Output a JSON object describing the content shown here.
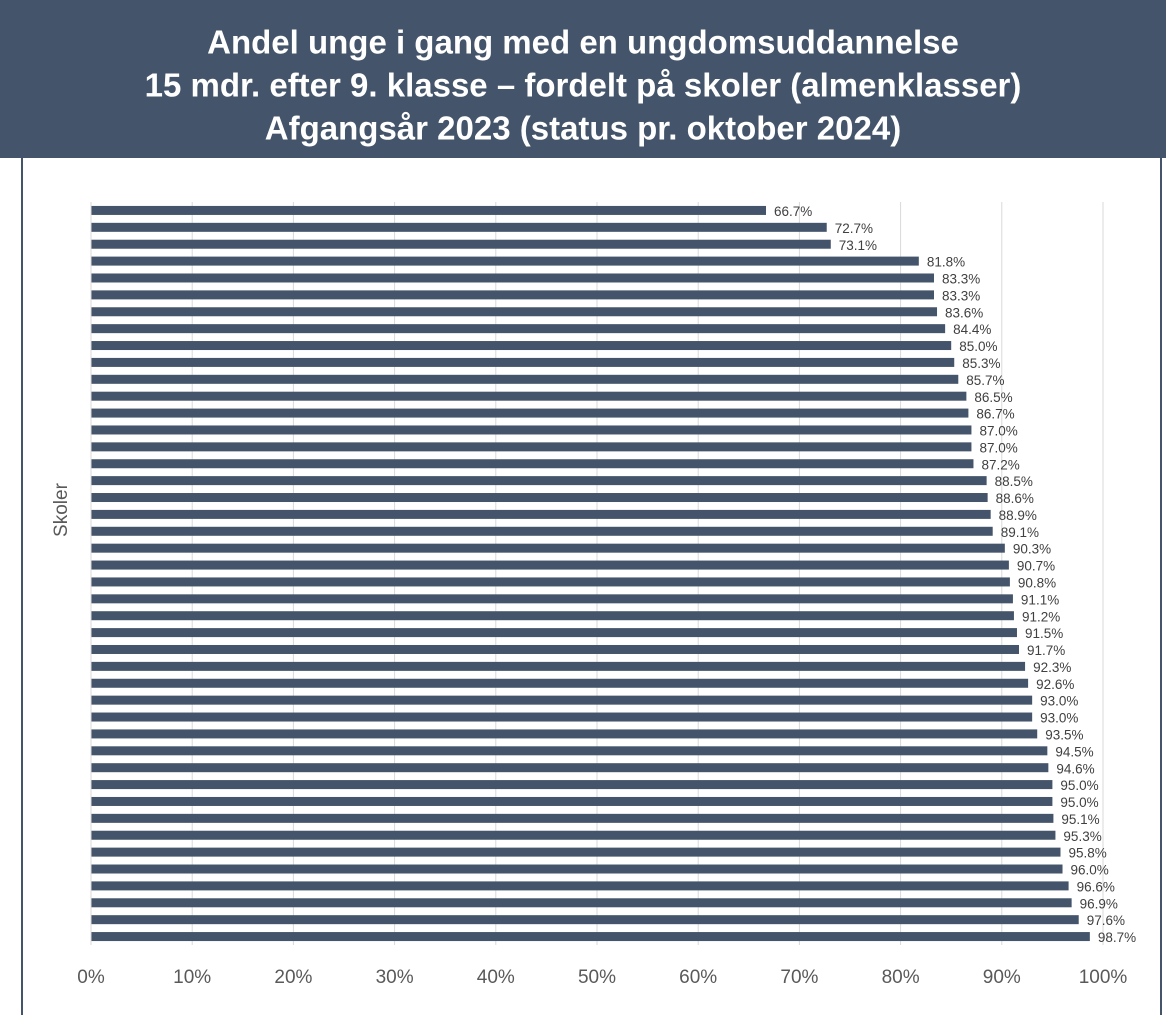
{
  "chart_data": {
    "type": "bar",
    "orientation": "horizontal",
    "title": [
      "Andel unge i gang med en ungdomsuddannelse",
      "15 mdr. efter 9. klasse – fordelt på skoler (almenklasser)",
      "Afgangsår 2023 (status pr. oktober 2024)"
    ],
    "y_label": "Skoler",
    "categories": [
      null,
      null,
      null,
      null,
      null,
      null,
      null,
      null,
      null,
      null,
      null,
      null,
      null,
      null,
      null,
      null,
      null,
      null,
      null,
      null,
      null,
      null,
      null,
      null,
      null,
      null,
      null,
      null,
      null,
      null,
      null,
      null,
      null,
      null,
      null,
      null,
      null,
      null,
      null,
      null,
      null,
      null,
      null,
      null
    ],
    "values": [
      66.7,
      72.7,
      73.1,
      81.8,
      83.3,
      83.3,
      83.6,
      84.4,
      85.0,
      85.3,
      85.7,
      86.5,
      86.7,
      87.0,
      87.0,
      87.2,
      88.5,
      88.6,
      88.9,
      89.1,
      90.3,
      90.7,
      90.8,
      91.1,
      91.2,
      91.5,
      91.7,
      92.3,
      92.6,
      93.0,
      93.0,
      93.5,
      94.5,
      94.6,
      95.0,
      95.0,
      95.1,
      95.3,
      95.8,
      96.0,
      96.6,
      96.9,
      97.6,
      98.7
    ],
    "value_labels": [
      "66.7%",
      "72.7%",
      "73.1%",
      "81.8%",
      "83.3%",
      "83.3%",
      "83.6%",
      "84.4%",
      "85.0%",
      "85.3%",
      "85.7%",
      "86.5%",
      "86.7%",
      "87.0%",
      "87.0%",
      "87.2%",
      "88.5%",
      "88.6%",
      "88.9%",
      "89.1%",
      "90.3%",
      "90.7%",
      "90.8%",
      "91.1%",
      "91.2%",
      "91.5%",
      "91.7%",
      "92.3%",
      "92.6%",
      "93.0%",
      "93.0%",
      "93.5%",
      "94.5%",
      "94.6%",
      "95.0%",
      "95.0%",
      "95.1%",
      "95.3%",
      "95.8%",
      "96.0%",
      "96.6%",
      "96.9%",
      "97.6%",
      "98.7%"
    ],
    "color": "#44546a",
    "xlim": [
      0,
      100
    ],
    "xticks": [
      {
        "value": 0,
        "label": "0%"
      },
      {
        "value": 10,
        "label": "10%"
      },
      {
        "value": 20,
        "label": "20%"
      },
      {
        "value": 30,
        "label": "30%"
      },
      {
        "value": 40,
        "label": "40%"
      },
      {
        "value": 50,
        "label": "50%"
      },
      {
        "value": 60,
        "label": "60%"
      },
      {
        "value": 70,
        "label": "70%"
      },
      {
        "value": 80,
        "label": "80%"
      },
      {
        "value": 90,
        "label": "90%"
      },
      {
        "value": 100,
        "label": "100%"
      }
    ],
    "grid": true
  }
}
